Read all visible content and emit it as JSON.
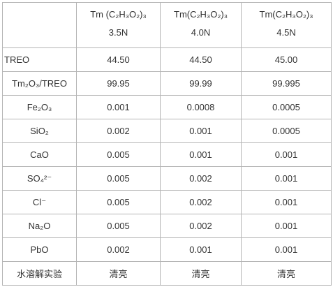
{
  "table": {
    "header": [
      [
        "Tm (C₂H₃O₂)₃",
        "3.5N"
      ],
      [
        "Tm(C₂H₃O₂)₃",
        "4.0N"
      ],
      [
        "Tm(C₂H₃O₂)₃",
        "4.5N"
      ]
    ],
    "rows": [
      [
        "TREO",
        "44.50",
        "44.50",
        "45.00"
      ],
      [
        "Tm₂O₃/TREO",
        "99.95",
        "99.99",
        "99.995"
      ],
      [
        "Fe₂O₃",
        "0.001",
        "0.0008",
        "0.0005"
      ],
      [
        "SiO₂",
        "0.002",
        "0.001",
        "0.0005"
      ],
      [
        "CaO",
        "0.005",
        "0.001",
        "0.001"
      ],
      [
        "SO₄²⁻",
        "0.005",
        "0.002",
        "0.001"
      ],
      [
        "Cl⁻",
        "0.005",
        "0.002",
        "0.001"
      ],
      [
        "Na₂O",
        "0.005",
        "0.002",
        "0.001"
      ],
      [
        "PbO",
        "0.002",
        "0.001",
        "0.001"
      ],
      [
        "水溶解实验",
        "清亮",
        "清亮",
        "清亮"
      ]
    ]
  }
}
